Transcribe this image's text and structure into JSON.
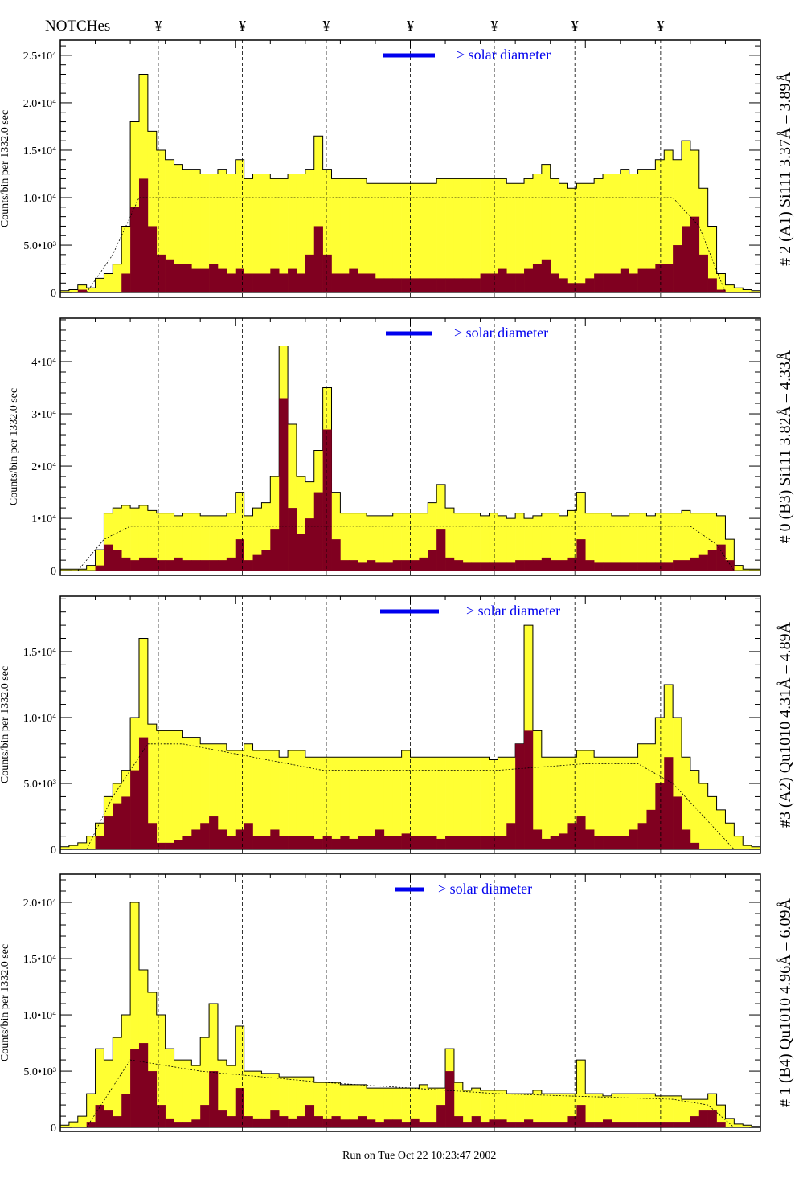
{
  "header": {
    "notches_label": "NOTCHes",
    "notch_symbol": "¥"
  },
  "footer": {
    "run_text": "Run on Tue Oct 22 10:23:47 2002"
  },
  "colors": {
    "total": "#ffff33",
    "component": "#800020",
    "legend": "#0000ee",
    "model": "#000000"
  },
  "chart_data": [
    {
      "type": "bar",
      "title": "# 2 (A1) Si111  3.37Å – 3.89Å",
      "ylabel": "Counts/bin per   1332.0 sec",
      "legend_text": "> solar diameter",
      "ylim": [
        -500,
        26600
      ],
      "yticks": [
        {
          "v": 0,
          "label": "0"
        },
        {
          "v": 5000,
          "label": "5.0•10³"
        },
        {
          "v": 10000,
          "label": "1.0•10⁴"
        },
        {
          "v": 15000,
          "label": "1.5•10⁴"
        },
        {
          "v": 20000,
          "label": "2.0•10⁴"
        },
        {
          "v": 25000,
          "label": "2.5•10⁴"
        }
      ],
      "notches": [
        11.2,
        20.8,
        30.4,
        40.0,
        49.6,
        58.8,
        68.6
      ],
      "total": [
        200,
        300,
        800,
        500,
        1500,
        2000,
        3000,
        7000,
        18000,
        23000,
        17000,
        15000,
        14000,
        13500,
        13000,
        13000,
        12500,
        12500,
        13000,
        12500,
        14000,
        12000,
        12500,
        12500,
        12000,
        12000,
        12500,
        12500,
        13000,
        16500,
        13000,
        12000,
        12000,
        12000,
        12000,
        11500,
        11500,
        11500,
        11500,
        11500,
        11500,
        11500,
        11500,
        12000,
        12000,
        12000,
        12000,
        12000,
        12000,
        12000,
        12000,
        11500,
        11500,
        12000,
        12500,
        13500,
        12000,
        11500,
        11000,
        11500,
        11500,
        12000,
        12500,
        12500,
        13000,
        12500,
        13000,
        13000,
        14000,
        15000,
        14000,
        16000,
        15000,
        11000,
        7000,
        2000,
        800,
        500,
        300,
        200
      ],
      "component": [
        0,
        0,
        300,
        0,
        0,
        0,
        0,
        2000,
        9000,
        12000,
        7000,
        4000,
        3500,
        3000,
        3000,
        2500,
        2500,
        3000,
        2500,
        2000,
        2500,
        2000,
        2000,
        2000,
        2500,
        2000,
        2500,
        2000,
        4000,
        7000,
        4000,
        2000,
        2000,
        2500,
        2000,
        2000,
        1500,
        1500,
        1500,
        1500,
        1500,
        1500,
        1500,
        1500,
        1500,
        1500,
        1500,
        1500,
        2000,
        2000,
        2500,
        2000,
        2000,
        2500,
        3000,
        3500,
        2000,
        1500,
        1000,
        1000,
        1500,
        2000,
        2000,
        2000,
        2500,
        2000,
        2500,
        2500,
        3000,
        3000,
        5000,
        7000,
        8000,
        4000,
        1500,
        300,
        0,
        0,
        0,
        0
      ],
      "model": [
        [
          3,
          0
        ],
        [
          6,
          4000
        ],
        [
          9,
          10000
        ],
        [
          70,
          10000
        ],
        [
          73,
          7000
        ],
        [
          76,
          0
        ]
      ]
    },
    {
      "type": "bar",
      "title": "# 0 (B3) Si111  3.82Å – 4.33Å",
      "ylabel": "Counts/bin per   1332.0 sec",
      "legend_text": "> solar diameter",
      "ylim": [
        -900,
        48300
      ],
      "yticks": [
        {
          "v": 0,
          "label": "0"
        },
        {
          "v": 10000,
          "label": "1•10⁴"
        },
        {
          "v": 20000,
          "label": "2•10⁴"
        },
        {
          "v": 30000,
          "label": "3•10⁴"
        },
        {
          "v": 40000,
          "label": "4•10⁴"
        }
      ],
      "notches": [
        11.2,
        20.8,
        30.4,
        40.0,
        49.6,
        58.8,
        68.6
      ],
      "total": [
        300,
        300,
        300,
        1000,
        4000,
        11000,
        12000,
        12500,
        12000,
        12500,
        11500,
        11000,
        11000,
        10500,
        11000,
        11000,
        10500,
        10500,
        10500,
        11000,
        15000,
        10500,
        12000,
        13000,
        18000,
        43000,
        28000,
        18000,
        17000,
        23000,
        35000,
        15000,
        11000,
        11000,
        11000,
        10500,
        10500,
        10500,
        11000,
        11000,
        11000,
        11000,
        13000,
        16500,
        12000,
        11000,
        11000,
        11000,
        10500,
        11000,
        10500,
        10000,
        11000,
        10000,
        10500,
        11000,
        11000,
        10500,
        11500,
        15000,
        11000,
        11000,
        11000,
        10500,
        10500,
        11000,
        11000,
        10500,
        11000,
        11000,
        11000,
        11500,
        11000,
        11000,
        11000,
        10500,
        6000,
        1000,
        300,
        300
      ],
      "component": [
        0,
        0,
        0,
        0,
        1000,
        5000,
        4000,
        2500,
        2000,
        2500,
        2500,
        2000,
        2000,
        2500,
        2000,
        2000,
        2000,
        2000,
        2000,
        2500,
        6000,
        2000,
        3000,
        4000,
        8000,
        33000,
        12000,
        7000,
        10000,
        15000,
        27000,
        6000,
        2000,
        2000,
        1500,
        2000,
        1500,
        1500,
        2000,
        2000,
        2000,
        2500,
        4000,
        8000,
        2500,
        2000,
        1500,
        1500,
        1500,
        1500,
        1500,
        1500,
        2000,
        2000,
        2000,
        2500,
        2000,
        2000,
        2500,
        6000,
        2000,
        1500,
        1500,
        1500,
        1500,
        1500,
        1500,
        1500,
        1500,
        1500,
        2000,
        2000,
        2500,
        3000,
        4000,
        5000,
        2000,
        0,
        0,
        0
      ],
      "model": [
        [
          2,
          0
        ],
        [
          5,
          6000
        ],
        [
          8,
          8500
        ],
        [
          72,
          8500
        ],
        [
          75,
          5000
        ],
        [
          77,
          0
        ]
      ]
    },
    {
      "type": "bar",
      "title": "#3 (A2) Qu1010  4.31Å – 4.89Å",
      "ylabel": "Counts/bin per   1332.0 sec",
      "legend_text": "> solar diameter",
      "ylim": [
        -300,
        19200
      ],
      "yticks": [
        {
          "v": 0,
          "label": "0"
        },
        {
          "v": 5000,
          "label": "5.0•10³"
        },
        {
          "v": 10000,
          "label": "1.0•10⁴"
        },
        {
          "v": 15000,
          "label": "1.5•10⁴"
        }
      ],
      "notches": [
        11.2,
        20.8,
        30.4,
        40.0,
        49.6,
        58.8,
        68.6
      ],
      "total": [
        200,
        300,
        500,
        1000,
        2000,
        4000,
        5000,
        6000,
        10000,
        16000,
        9500,
        9000,
        9000,
        9000,
        8500,
        8500,
        8000,
        8000,
        8000,
        7500,
        7500,
        8000,
        7500,
        7500,
        7500,
        7000,
        7500,
        7500,
        7000,
        7000,
        7000,
        7000,
        7000,
        7000,
        7000,
        7000,
        7000,
        7000,
        7000,
        7500,
        7000,
        7000,
        7000,
        7000,
        7000,
        7000,
        7000,
        7000,
        7000,
        6800,
        7000,
        7000,
        8000,
        17000,
        9000,
        7000,
        7000,
        7000,
        7000,
        7500,
        7500,
        7000,
        7000,
        7000,
        7000,
        7000,
        8000,
        8000,
        10000,
        12500,
        10000,
        7000,
        6000,
        5000,
        4000,
        3000,
        2000,
        1000,
        300,
        200
      ],
      "component": [
        0,
        0,
        0,
        0,
        1000,
        2500,
        3500,
        4000,
        6000,
        8500,
        2000,
        500,
        500,
        700,
        1000,
        1500,
        2000,
        2500,
        1500,
        1000,
        1500,
        2000,
        1000,
        1000,
        1500,
        1000,
        1000,
        1000,
        1000,
        800,
        1000,
        800,
        1000,
        800,
        1000,
        1000,
        1500,
        1000,
        1000,
        1200,
        1000,
        1000,
        1000,
        800,
        1000,
        1000,
        1000,
        1000,
        1000,
        1000,
        1000,
        2000,
        8000,
        9000,
        1500,
        800,
        1000,
        1200,
        2000,
        2500,
        1500,
        1000,
        1000,
        1000,
        1000,
        1500,
        2000,
        3000,
        5000,
        7000,
        4000,
        1500,
        500,
        0,
        0,
        0,
        0,
        0,
        0,
        0
      ],
      "model": [
        [
          3,
          0
        ],
        [
          6,
          4000
        ],
        [
          10,
          8000
        ],
        [
          14,
          8000
        ],
        [
          30,
          6000
        ],
        [
          50,
          6000
        ],
        [
          60,
          6500
        ],
        [
          66,
          6500
        ],
        [
          70,
          5000
        ],
        [
          77,
          0
        ]
      ]
    },
    {
      "type": "bar",
      "title": "# 1 (B4) Qu1010 4.96Å – 6.09Å",
      "ylabel": "Counts/bin per   1332.0 sec",
      "legend_text": "> solar diameter",
      "ylim": [
        -350,
        22500
      ],
      "yticks": [
        {
          "v": 0,
          "label": "0"
        },
        {
          "v": 5000,
          "label": "5.0•10³"
        },
        {
          "v": 10000,
          "label": "1.0•10⁴"
        },
        {
          "v": 15000,
          "label": "1.5•10⁴"
        },
        {
          "v": 20000,
          "label": "2.0•10⁴"
        }
      ],
      "notches": [
        11.2,
        20.8,
        30.4,
        40.0,
        49.6,
        58.8,
        68.6
      ],
      "total": [
        200,
        500,
        1000,
        3000,
        7000,
        6000,
        8000,
        10000,
        20000,
        14000,
        12000,
        10000,
        7000,
        6000,
        6000,
        5500,
        8000,
        11000,
        6000,
        5500,
        9000,
        5000,
        5000,
        4800,
        4800,
        4500,
        4500,
        4500,
        4500,
        4000,
        4000,
        4000,
        3800,
        3800,
        3800,
        3500,
        3500,
        3500,
        3500,
        3500,
        3500,
        3800,
        3500,
        3500,
        7000,
        4000,
        3300,
        3500,
        3300,
        3300,
        3300,
        3000,
        3000,
        3000,
        3300,
        3000,
        3000,
        3000,
        3000,
        6000,
        3000,
        3000,
        2800,
        3000,
        3000,
        3000,
        3000,
        3000,
        2800,
        2800,
        2800,
        2500,
        2500,
        2500,
        3000,
        2000,
        800,
        300,
        200,
        100
      ],
      "component": [
        0,
        0,
        0,
        500,
        2000,
        1500,
        1000,
        3000,
        7000,
        7500,
        5000,
        2000,
        800,
        500,
        500,
        700,
        2000,
        5000,
        1500,
        1000,
        3500,
        1000,
        800,
        800,
        1500,
        1000,
        800,
        1000,
        2000,
        1000,
        800,
        1000,
        700,
        700,
        1000,
        700,
        500,
        700,
        700,
        500,
        800,
        500,
        500,
        2000,
        5000,
        1000,
        500,
        1000,
        500,
        700,
        700,
        500,
        500,
        700,
        500,
        500,
        500,
        500,
        1000,
        2000,
        500,
        500,
        700,
        500,
        500,
        500,
        500,
        500,
        500,
        500,
        500,
        500,
        1000,
        1500,
        1500,
        500,
        0,
        0,
        0,
        0
      ],
      "model": [
        [
          3,
          0
        ],
        [
          8,
          6000
        ],
        [
          16,
          5000
        ],
        [
          30,
          4000
        ],
        [
          50,
          3000
        ],
        [
          70,
          2500
        ],
        [
          74,
          2000
        ],
        [
          77,
          0
        ]
      ]
    }
  ]
}
